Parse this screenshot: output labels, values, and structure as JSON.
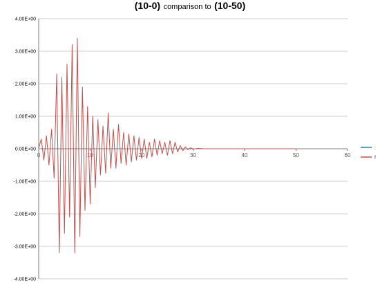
{
  "chart_data": {
    "type": "line",
    "title_parts": [
      "(10-0)",
      "comparison to",
      "(10-50)"
    ],
    "xlabel": "",
    "ylabel": "",
    "xlim": [
      0,
      60
    ],
    "ylim": [
      -4,
      4
    ],
    "x_ticks": [
      "0",
      "10",
      "20",
      "30",
      "40",
      "50",
      "60"
    ],
    "y_ticks": [
      "4.00E+00",
      "3.00E+00",
      "2.00E+00",
      "1.00E+00",
      "0.00E+00",
      "-1.00E+00",
      "-2.00E+00",
      "-3.00E+00",
      "-4.00E+00"
    ],
    "grid": true,
    "legend_placement": "right",
    "series": [
      {
        "color": "#2e75b6",
        "legend_label": ":"
      },
      {
        "color": "#c0504d",
        "legend_label": "f",
        "x": [
          0,
          0.5,
          1,
          1.5,
          2,
          2.5,
          3,
          3.5,
          4,
          4.5,
          5,
          5.5,
          6,
          6.5,
          7,
          7.5,
          8,
          8.5,
          9,
          9.5,
          10,
          10.5,
          11,
          11.5,
          12,
          12.5,
          13,
          13.5,
          14,
          14.5,
          15,
          15.5,
          16,
          16.5,
          17,
          17.5,
          18,
          18.5,
          19,
          19.5,
          20,
          20.5,
          21,
          21.5,
          22,
          22.5,
          23,
          23.5,
          24,
          24.5,
          25,
          25.5,
          26,
          26.5,
          27,
          27.5,
          28,
          28.5,
          29,
          29.5,
          30,
          31,
          32,
          33,
          50
        ],
        "y": [
          0.02,
          0.3,
          -0.35,
          0.4,
          -0.5,
          0.6,
          -0.9,
          2.3,
          -3.2,
          2.2,
          -2.6,
          2.6,
          -2.1,
          3.2,
          -3.2,
          3.4,
          -2.7,
          1.9,
          -1.9,
          1.3,
          -1.7,
          1.0,
          -1.2,
          0.9,
          -0.8,
          0.7,
          -0.75,
          1.1,
          -0.6,
          0.6,
          -0.6,
          0.75,
          -0.45,
          0.5,
          -0.5,
          0.45,
          -0.4,
          0.4,
          -0.35,
          0.35,
          -0.3,
          0.3,
          -0.3,
          0.2,
          -0.25,
          0.3,
          -0.2,
          0.25,
          -0.15,
          0.2,
          -0.2,
          0.25,
          -0.15,
          0.2,
          -0.1,
          0.1,
          -0.06,
          0.06,
          -0.03,
          0.03,
          -0.01,
          0.01,
          0,
          0,
          0
        ]
      }
    ]
  }
}
